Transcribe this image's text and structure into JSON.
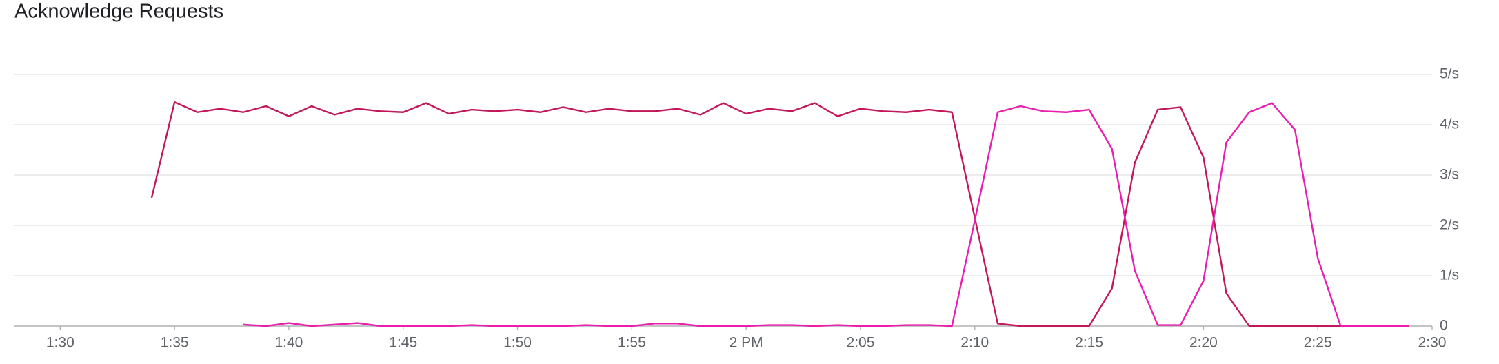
{
  "chart_data": {
    "type": "line",
    "title": "Acknowledge Requests",
    "x": [
      94,
      95,
      96,
      97,
      98,
      99,
      100,
      101,
      102,
      103,
      104,
      105,
      106,
      107,
      108,
      109,
      110,
      111,
      112,
      113,
      114,
      115,
      116,
      117,
      118,
      119,
      120,
      121,
      122,
      123,
      124,
      125,
      126,
      127,
      128,
      129,
      130,
      131,
      132,
      133,
      134,
      135,
      136,
      137,
      138,
      139,
      140,
      141,
      142,
      143,
      144,
      145,
      146,
      147,
      148,
      149
    ],
    "series": [
      {
        "color": "#c2185b",
        "values": [
          2.55,
          4.45,
          4.25,
          4.32,
          4.25,
          4.37,
          4.17,
          4.37,
          4.2,
          4.32,
          4.27,
          4.25,
          4.43,
          4.22,
          4.3,
          4.27,
          4.3,
          4.25,
          4.35,
          4.25,
          4.32,
          4.27,
          4.27,
          4.32,
          4.2,
          4.43,
          4.22,
          4.32,
          4.27,
          4.43,
          4.17,
          4.32,
          4.27,
          4.25,
          4.3,
          4.25,
          2.15,
          0.05,
          0,
          0,
          0,
          0,
          0.75,
          3.25,
          4.3,
          4.35,
          3.35,
          0.65,
          0,
          0,
          0,
          0,
          0,
          0,
          0,
          0
        ]
      },
      {
        "color": "#e91eac",
        "values": [
          null,
          null,
          null,
          null,
          0.03,
          0,
          0.06,
          0,
          0.03,
          0.06,
          0,
          0,
          0,
          0,
          0.02,
          0,
          0,
          0,
          0,
          0.02,
          0,
          0,
          0.05,
          0.05,
          0,
          0,
          0,
          0.02,
          0.02,
          0,
          0.02,
          0,
          0,
          0.02,
          0.02,
          0,
          2.1,
          4.25,
          4.37,
          4.27,
          4.25,
          4.3,
          3.52,
          1.1,
          0.02,
          0.02,
          0.9,
          3.65,
          4.25,
          4.43,
          3.9,
          1.35,
          0,
          0,
          0,
          0
        ]
      }
    ],
    "xlim": [
      88,
      150
    ],
    "xticks": [
      {
        "value": 90,
        "label": "1:30"
      },
      {
        "value": 95,
        "label": "1:35"
      },
      {
        "value": 100,
        "label": "1:40"
      },
      {
        "value": 105,
        "label": "1:45"
      },
      {
        "value": 110,
        "label": "1:50"
      },
      {
        "value": 115,
        "label": "1:55"
      },
      {
        "value": 120,
        "label": "2 PM"
      },
      {
        "value": 125,
        "label": "2:05"
      },
      {
        "value": 130,
        "label": "2:10"
      },
      {
        "value": 135,
        "label": "2:15"
      },
      {
        "value": 140,
        "label": "2:20"
      },
      {
        "value": 145,
        "label": "2:25"
      },
      {
        "value": 150,
        "label": "2:30"
      }
    ],
    "ylim": [
      0,
      5
    ],
    "yticks": [
      0,
      {
        "value": 1,
        "label": "1/s"
      },
      {
        "value": 2,
        "label": "2/s"
      },
      {
        "value": 3,
        "label": "3/s"
      },
      {
        "value": 4,
        "label": "4/s"
      },
      {
        "value": 5,
        "label": "5/s"
      }
    ],
    "grid": true
  }
}
